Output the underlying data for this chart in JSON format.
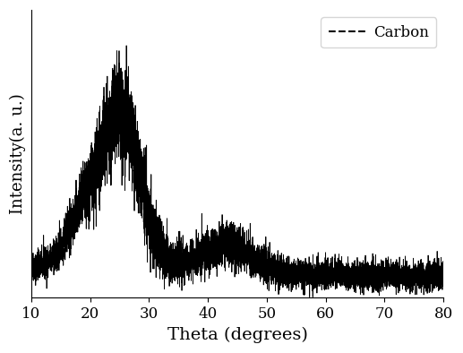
{
  "xlabel": "Theta (degrees)",
  "ylabel": "Intensity(a. u.)",
  "legend_label": "Carbon",
  "line_color": "#000000",
  "background_color": "#ffffff",
  "xlim": [
    10,
    80
  ],
  "xticks": [
    10,
    20,
    30,
    40,
    50,
    60,
    70,
    80
  ],
  "seed": 42,
  "noise_scale": 0.045,
  "n_points": 7000,
  "xlabel_fontsize": 14,
  "ylabel_fontsize": 13,
  "tick_fontsize": 12,
  "legend_fontsize": 12,
  "figsize": [
    5.17,
    3.94
  ],
  "dpi": 100
}
